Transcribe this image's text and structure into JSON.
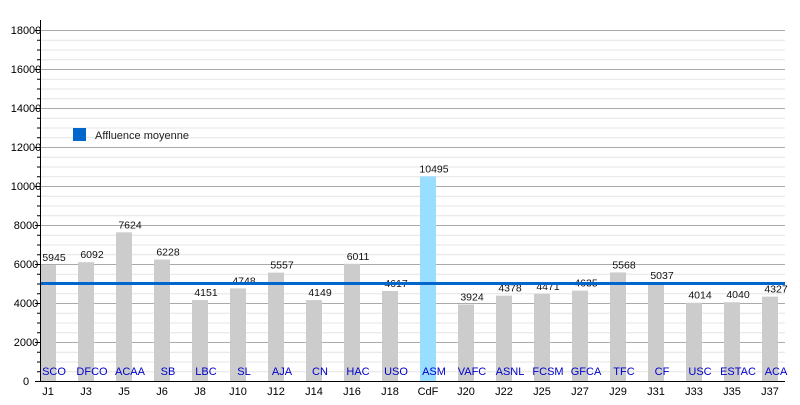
{
  "chart_data": {
    "type": "bar",
    "title": "",
    "xlabel": "",
    "ylabel": "",
    "ylim": [
      0,
      18000
    ],
    "y_ticks": [
      0,
      2000,
      4000,
      6000,
      8000,
      10000,
      12000,
      14000,
      16000,
      18000
    ],
    "grid": true,
    "categories": [
      "J1",
      "J3",
      "J5",
      "J6",
      "J8",
      "J10",
      "J12",
      "J14",
      "J16",
      "J18",
      "CdF",
      "J20",
      "J22",
      "J25",
      "J27",
      "J29",
      "J31",
      "J33",
      "J35",
      "J37"
    ],
    "opponents": [
      "SCO",
      "DFCO",
      "ACAA",
      "SB",
      "LBC",
      "SL",
      "AJA",
      "CN",
      "HAC",
      "USO",
      "ASM",
      "VAFC",
      "ASNL",
      "FCSM",
      "GFCA",
      "TFC",
      "CF",
      "USC",
      "ESTAC",
      "ACA"
    ],
    "values": [
      5945,
      6092,
      7624,
      6228,
      4151,
      4748,
      5557,
      4149,
      6011,
      4617,
      10495,
      3924,
      4378,
      4471,
      4635,
      5568,
      5037,
      4014,
      4040,
      4327
    ],
    "highlighted_category": "CdF",
    "average": {
      "name": "Affluence moyenne",
      "value": 5000
    },
    "legend_placement": "top-left",
    "colors": {
      "bar": "#cccccc",
      "highlight_bar": "#99ddff",
      "average_line": "#0066cc",
      "opponent_label": "#0000cc"
    }
  }
}
